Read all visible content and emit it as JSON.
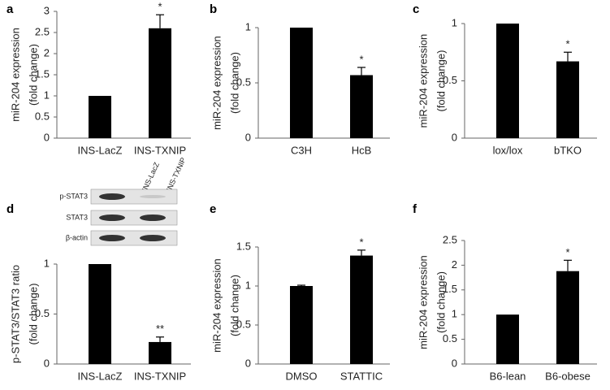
{
  "chart_data": [
    {
      "type": "bar",
      "panel": "a",
      "ylabel": [
        "miR-204 expression",
        "(fold change)"
      ],
      "categories": [
        "INS-LacZ",
        "INS-TXNIP"
      ],
      "values": [
        1,
        2.6
      ],
      "errors": [
        0,
        0.32
      ],
      "value_annotations": [
        null,
        "*"
      ],
      "color": "#000000",
      "ylim": [
        0,
        3
      ],
      "yticks": [
        0,
        0.5,
        1,
        1.5,
        2,
        2.5,
        3
      ]
    },
    {
      "type": "bar",
      "panel": "b",
      "ylabel": [
        "miR-204 expression",
        "(fold change)"
      ],
      "categories": [
        "C3H",
        "HcB"
      ],
      "values": [
        1,
        0.57
      ],
      "errors": [
        0,
        0.07
      ],
      "value_annotations": [
        null,
        "*"
      ],
      "color": "#000000",
      "ylim": [
        0,
        1
      ],
      "yticks": [
        0,
        0.5,
        1
      ]
    },
    {
      "type": "bar",
      "panel": "c",
      "ylabel": [
        "miR-204 expression",
        "(fold change)"
      ],
      "categories": [
        "lox/lox",
        "bTKO"
      ],
      "values": [
        1,
        0.67
      ],
      "errors": [
        0,
        0.08
      ],
      "value_annotations": [
        null,
        "*"
      ],
      "color": "#000000",
      "ylim": [
        0,
        1
      ],
      "yticks": [
        0,
        0.5,
        1
      ]
    },
    {
      "type": "bar",
      "panel": "d",
      "ylabel": [
        "p-STAT3/STAT3 ratio",
        "(fold change)"
      ],
      "categories": [
        "INS-LacZ",
        "INS-TXNIP"
      ],
      "values": [
        1,
        0.22
      ],
      "errors": [
        0,
        0.05
      ],
      "value_annotations": [
        null,
        "**"
      ],
      "color": "#000000",
      "ylim": [
        0,
        1
      ],
      "yticks": [
        0,
        0.5,
        1
      ],
      "blot": {
        "lanes": [
          "INS-LacZ",
          "INS-TXNIP"
        ],
        "rows": [
          "p-STAT3",
          "STAT3",
          "β-actin"
        ]
      }
    },
    {
      "type": "bar",
      "panel": "e",
      "ylabel": [
        "miR-204 expression",
        "(fold change)"
      ],
      "categories": [
        "DMSO",
        "STATTIC"
      ],
      "values": [
        1,
        1.39
      ],
      "errors": [
        0.01,
        0.07
      ],
      "value_annotations": [
        null,
        "*"
      ],
      "color": "#000000",
      "ylim": [
        0,
        1.5
      ],
      "yticks": [
        0,
        0.5,
        1,
        1.5
      ]
    },
    {
      "type": "bar",
      "panel": "f",
      "ylabel": [
        "miR-204 expression",
        "(fold change)"
      ],
      "categories": [
        "B6-lean",
        "B6-obese"
      ],
      "values": [
        1,
        1.88
      ],
      "errors": [
        0,
        0.22
      ],
      "value_annotations": [
        null,
        "*"
      ],
      "color": "#000000",
      "ylim": [
        0,
        2.5
      ],
      "yticks": [
        0,
        0.5,
        1,
        1.5,
        2,
        2.5
      ]
    }
  ]
}
